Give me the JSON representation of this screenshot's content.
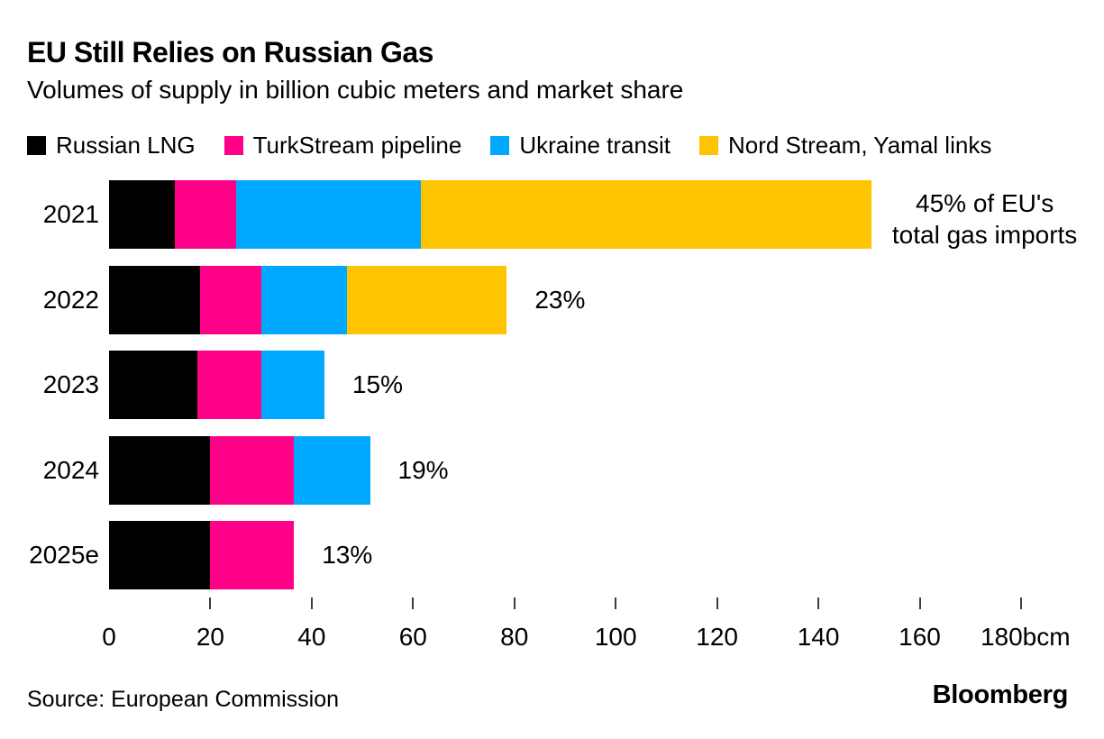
{
  "title": "EU Still Relies on Russian Gas",
  "subtitle": "Volumes of supply in billion cubic meters and market share",
  "source": "Source: European Commission",
  "brand": "Bloomberg",
  "colors": {
    "background": "#ffffff",
    "text": "#000000",
    "tick": "#3d3d3d",
    "russian_lng": "#000000",
    "turkstream": "#ff0089",
    "ukraine_transit": "#00a8ff",
    "nord_stream_yamal": "#ffc400"
  },
  "chart_data": {
    "type": "bar",
    "orientation": "horizontal",
    "stacked": true,
    "grid": false,
    "legend_position": "top",
    "title": "EU Still Relies on Russian Gas",
    "subtitle": "Volumes of supply in billion cubic meters and market share",
    "categories": [
      "2021",
      "2022",
      "2023",
      "2024",
      "2025e"
    ],
    "series": [
      {
        "name": "Russian LNG",
        "color": "#000000",
        "values": [
          13,
          18,
          17.5,
          20,
          20
        ]
      },
      {
        "name": "TurkStream pipeline",
        "color": "#ff0089",
        "values": [
          12,
          12,
          12.5,
          16.5,
          16.5
        ]
      },
      {
        "name": "Ukraine transit",
        "color": "#00a8ff",
        "values": [
          36.5,
          17,
          12.5,
          15,
          0
        ]
      },
      {
        "name": "Nord Stream, Yamal links",
        "color": "#ffc400",
        "values": [
          89,
          31.5,
          0,
          0,
          0
        ]
      }
    ],
    "totals": [
      150.5,
      78.5,
      42.5,
      51.5,
      36.5
    ],
    "bar_labels": [
      "45% of EU's\ntotal gas imports",
      "23%",
      "15%",
      "19%",
      "13%"
    ],
    "xlim": [
      0,
      180
    ],
    "xticks": [
      0,
      20,
      40,
      60,
      80,
      100,
      120,
      140,
      160,
      180
    ],
    "x_unit": "bcm"
  }
}
